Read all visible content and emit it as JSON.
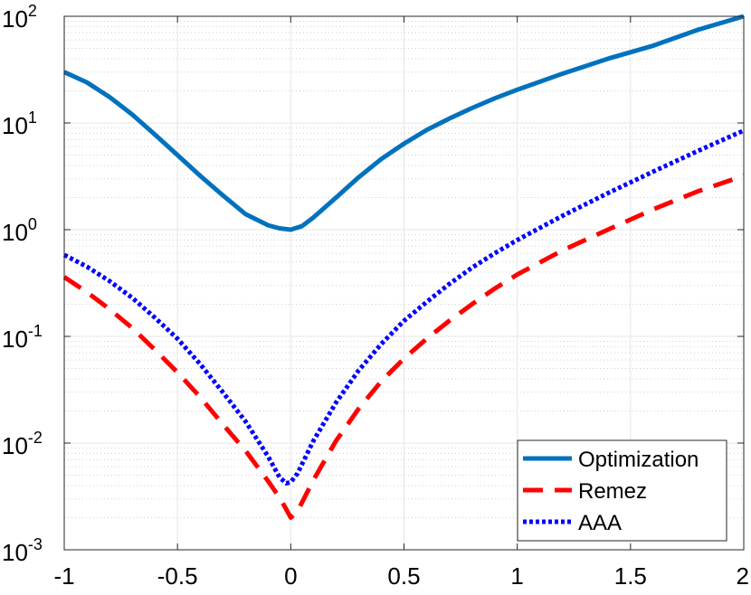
{
  "chart_data": {
    "type": "line",
    "title": "",
    "xlabel": "",
    "ylabel": "",
    "xlim": [
      -1,
      2
    ],
    "ylim": [
      0.001,
      100
    ],
    "yscale": "log",
    "grid": true,
    "minor_grid": true,
    "legend_position": "bottom-right",
    "x_ticks": [
      {
        "value": -1,
        "label": "-1"
      },
      {
        "value": -0.5,
        "label": "-0.5"
      },
      {
        "value": 0,
        "label": "0"
      },
      {
        "value": 0.5,
        "label": "0.5"
      },
      {
        "value": 1,
        "label": "1"
      },
      {
        "value": 1.5,
        "label": "1.5"
      },
      {
        "value": 2,
        "label": "2"
      }
    ],
    "y_ticks": [
      {
        "value": 0.001,
        "base": "10",
        "exp": "-3"
      },
      {
        "value": 0.01,
        "base": "10",
        "exp": "-2"
      },
      {
        "value": 0.1,
        "base": "10",
        "exp": "-1"
      },
      {
        "value": 1,
        "base": "10",
        "exp": "0"
      },
      {
        "value": 10,
        "base": "10",
        "exp": "1"
      },
      {
        "value": 100,
        "base": "10",
        "exp": "2"
      }
    ],
    "series": [
      {
        "name": "Optimization",
        "color": "#0072BD",
        "style": "solid",
        "x": [
          -1.0,
          -0.9,
          -0.8,
          -0.7,
          -0.6,
          -0.5,
          -0.4,
          -0.3,
          -0.2,
          -0.1,
          -0.05,
          0.0,
          0.05,
          0.1,
          0.2,
          0.3,
          0.4,
          0.5,
          0.6,
          0.7,
          0.8,
          0.9,
          1.0,
          1.2,
          1.4,
          1.6,
          1.8,
          2.0
        ],
        "y": [
          30.0,
          24.0,
          17.5,
          12.0,
          7.8,
          5.0,
          3.2,
          2.1,
          1.4,
          1.1,
          1.03,
          1.0,
          1.08,
          1.3,
          2.0,
          3.1,
          4.6,
          6.4,
          8.6,
          11.0,
          13.8,
          17.0,
          20.5,
          29.0,
          40.0,
          53.0,
          75.0,
          100.0
        ]
      },
      {
        "name": "Remez",
        "color": "#FF0000",
        "style": "dashed",
        "x": [
          -1.0,
          -0.9,
          -0.8,
          -0.7,
          -0.6,
          -0.5,
          -0.4,
          -0.3,
          -0.2,
          -0.1,
          -0.05,
          -0.02,
          0.0,
          0.03,
          0.1,
          0.2,
          0.3,
          0.4,
          0.5,
          0.6,
          0.7,
          0.8,
          0.9,
          1.0,
          1.2,
          1.4,
          1.6,
          1.8,
          2.0
        ],
        "y": [
          0.36,
          0.26,
          0.18,
          0.12,
          0.075,
          0.046,
          0.027,
          0.015,
          0.0085,
          0.0044,
          0.0031,
          0.0024,
          0.002,
          0.0023,
          0.0045,
          0.0105,
          0.021,
          0.038,
          0.062,
          0.095,
          0.14,
          0.2,
          0.28,
          0.38,
          0.64,
          1.0,
          1.55,
          2.3,
          3.2
        ]
      },
      {
        "name": "AAA",
        "color": "#0000FF",
        "style": "dotted",
        "x": [
          -1.0,
          -0.9,
          -0.8,
          -0.7,
          -0.6,
          -0.5,
          -0.4,
          -0.3,
          -0.2,
          -0.1,
          -0.05,
          -0.02,
          0.0,
          0.03,
          0.1,
          0.2,
          0.3,
          0.4,
          0.5,
          0.6,
          0.7,
          0.8,
          0.9,
          1.0,
          1.2,
          1.4,
          1.6,
          1.8,
          2.0
        ],
        "y": [
          0.58,
          0.45,
          0.33,
          0.23,
          0.15,
          0.095,
          0.055,
          0.03,
          0.016,
          0.0075,
          0.0048,
          0.0042,
          0.0043,
          0.0052,
          0.0105,
          0.024,
          0.048,
          0.085,
          0.14,
          0.21,
          0.31,
          0.44,
          0.6,
          0.8,
          1.35,
          2.2,
          3.5,
          5.5,
          8.5
        ]
      }
    ]
  }
}
